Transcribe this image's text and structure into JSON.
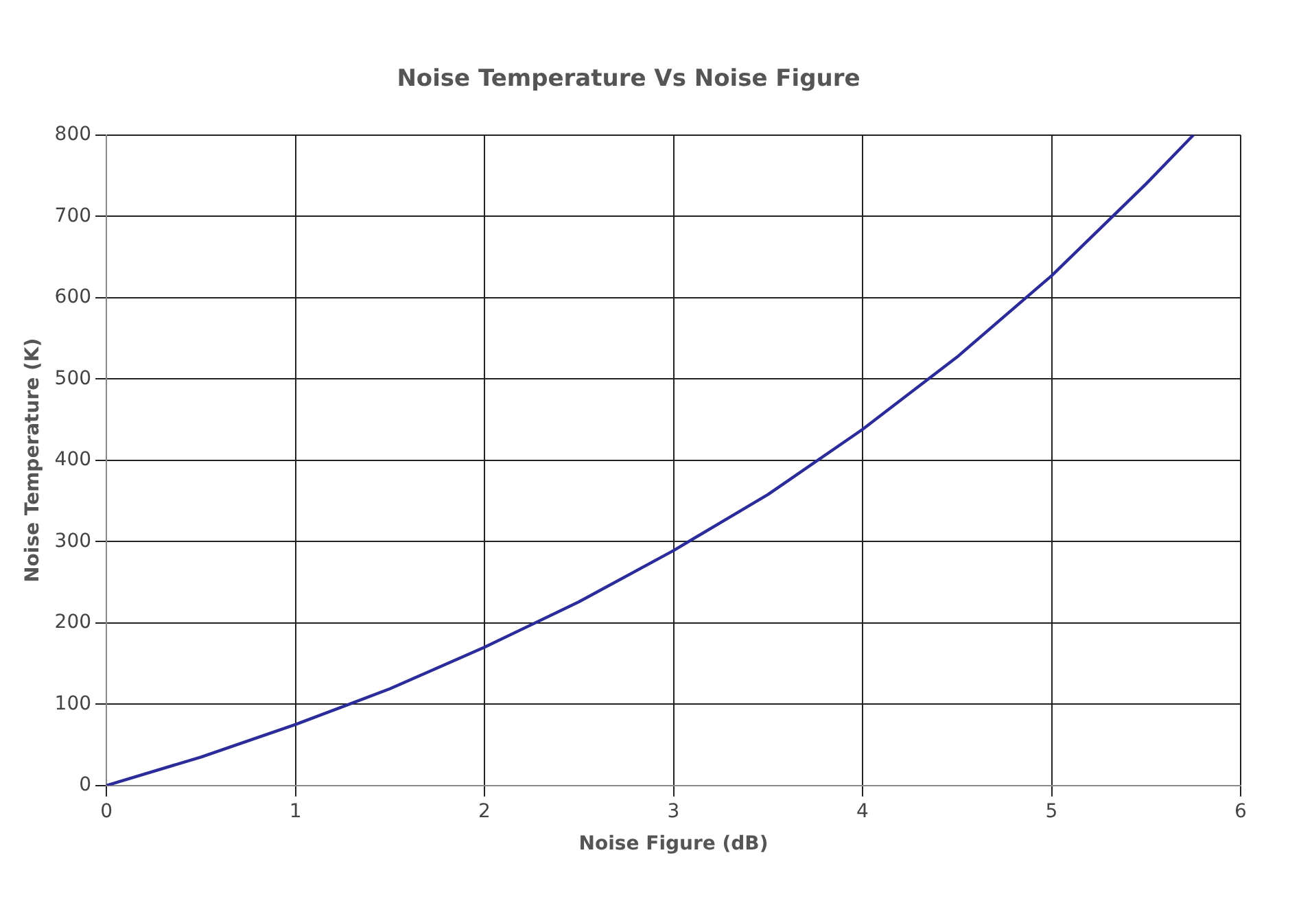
{
  "chart_data": {
    "type": "line",
    "title": "Noise Temperature Vs Noise Figure",
    "xlabel": "Noise Figure (dB)",
    "ylabel": "Noise Temperature (K)",
    "x": [
      0,
      0.5,
      1,
      1.5,
      2,
      2.5,
      3,
      3.5,
      4,
      4.5,
      5,
      5.5,
      5.75
    ],
    "series": [
      {
        "color": "#2b2b9a",
        "values": [
          0,
          35,
          75,
          119,
          170,
          226,
          289,
          358,
          438,
          527,
          627,
          740,
          800
        ]
      }
    ],
    "xlim": [
      0,
      6
    ],
    "xticks": [
      0,
      1,
      2,
      3,
      4,
      5,
      6
    ],
    "ylim": [
      0,
      800
    ],
    "yticks": [
      0,
      100,
      200,
      300,
      400,
      500,
      600,
      700,
      800
    ],
    "grid": true,
    "legend": false,
    "marker": "none",
    "line_style": "solid"
  }
}
